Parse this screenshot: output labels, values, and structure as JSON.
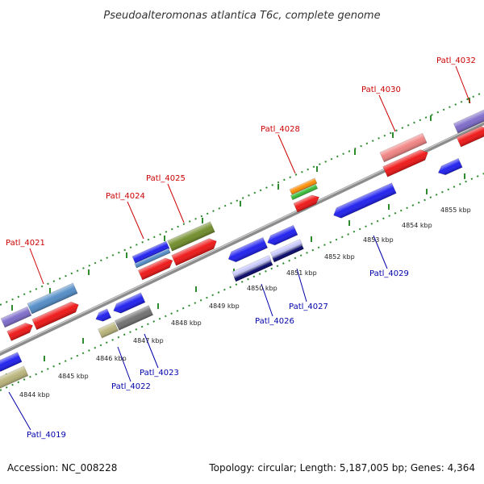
{
  "title": "Pseudoalteromonas atlantica T6c, complete genome",
  "footer": {
    "accession": "Accession: NC_008228",
    "summary": "Topology: circular; Length: 5,187,005 bp; Genes: 4,364"
  },
  "colors": {
    "forward_label": "#cc0000",
    "reverse_label": "#0000aa",
    "backbone": "#8c8c8c",
    "tick": "#2e8b2e"
  },
  "ticks": [
    "4844 kbp",
    "4845 kbp",
    "4846 kbp",
    "4847 kbp",
    "4848 kbp",
    "4849 kbp",
    "4850 kbp",
    "4851 kbp",
    "4852 kbp",
    "4853 kbp",
    "4854 kbp",
    "4855 kbp"
  ],
  "gene_labels": {
    "forward": [
      "Patl_4021",
      "Patl_4024",
      "Patl_4025",
      "Patl_4028",
      "Patl_4030",
      "Patl_4032"
    ],
    "reverse": [
      "Patl_4019",
      "Patl_4022",
      "Patl_4023",
      "Patl_4026",
      "Patl_4027",
      "Patl_4029"
    ]
  }
}
